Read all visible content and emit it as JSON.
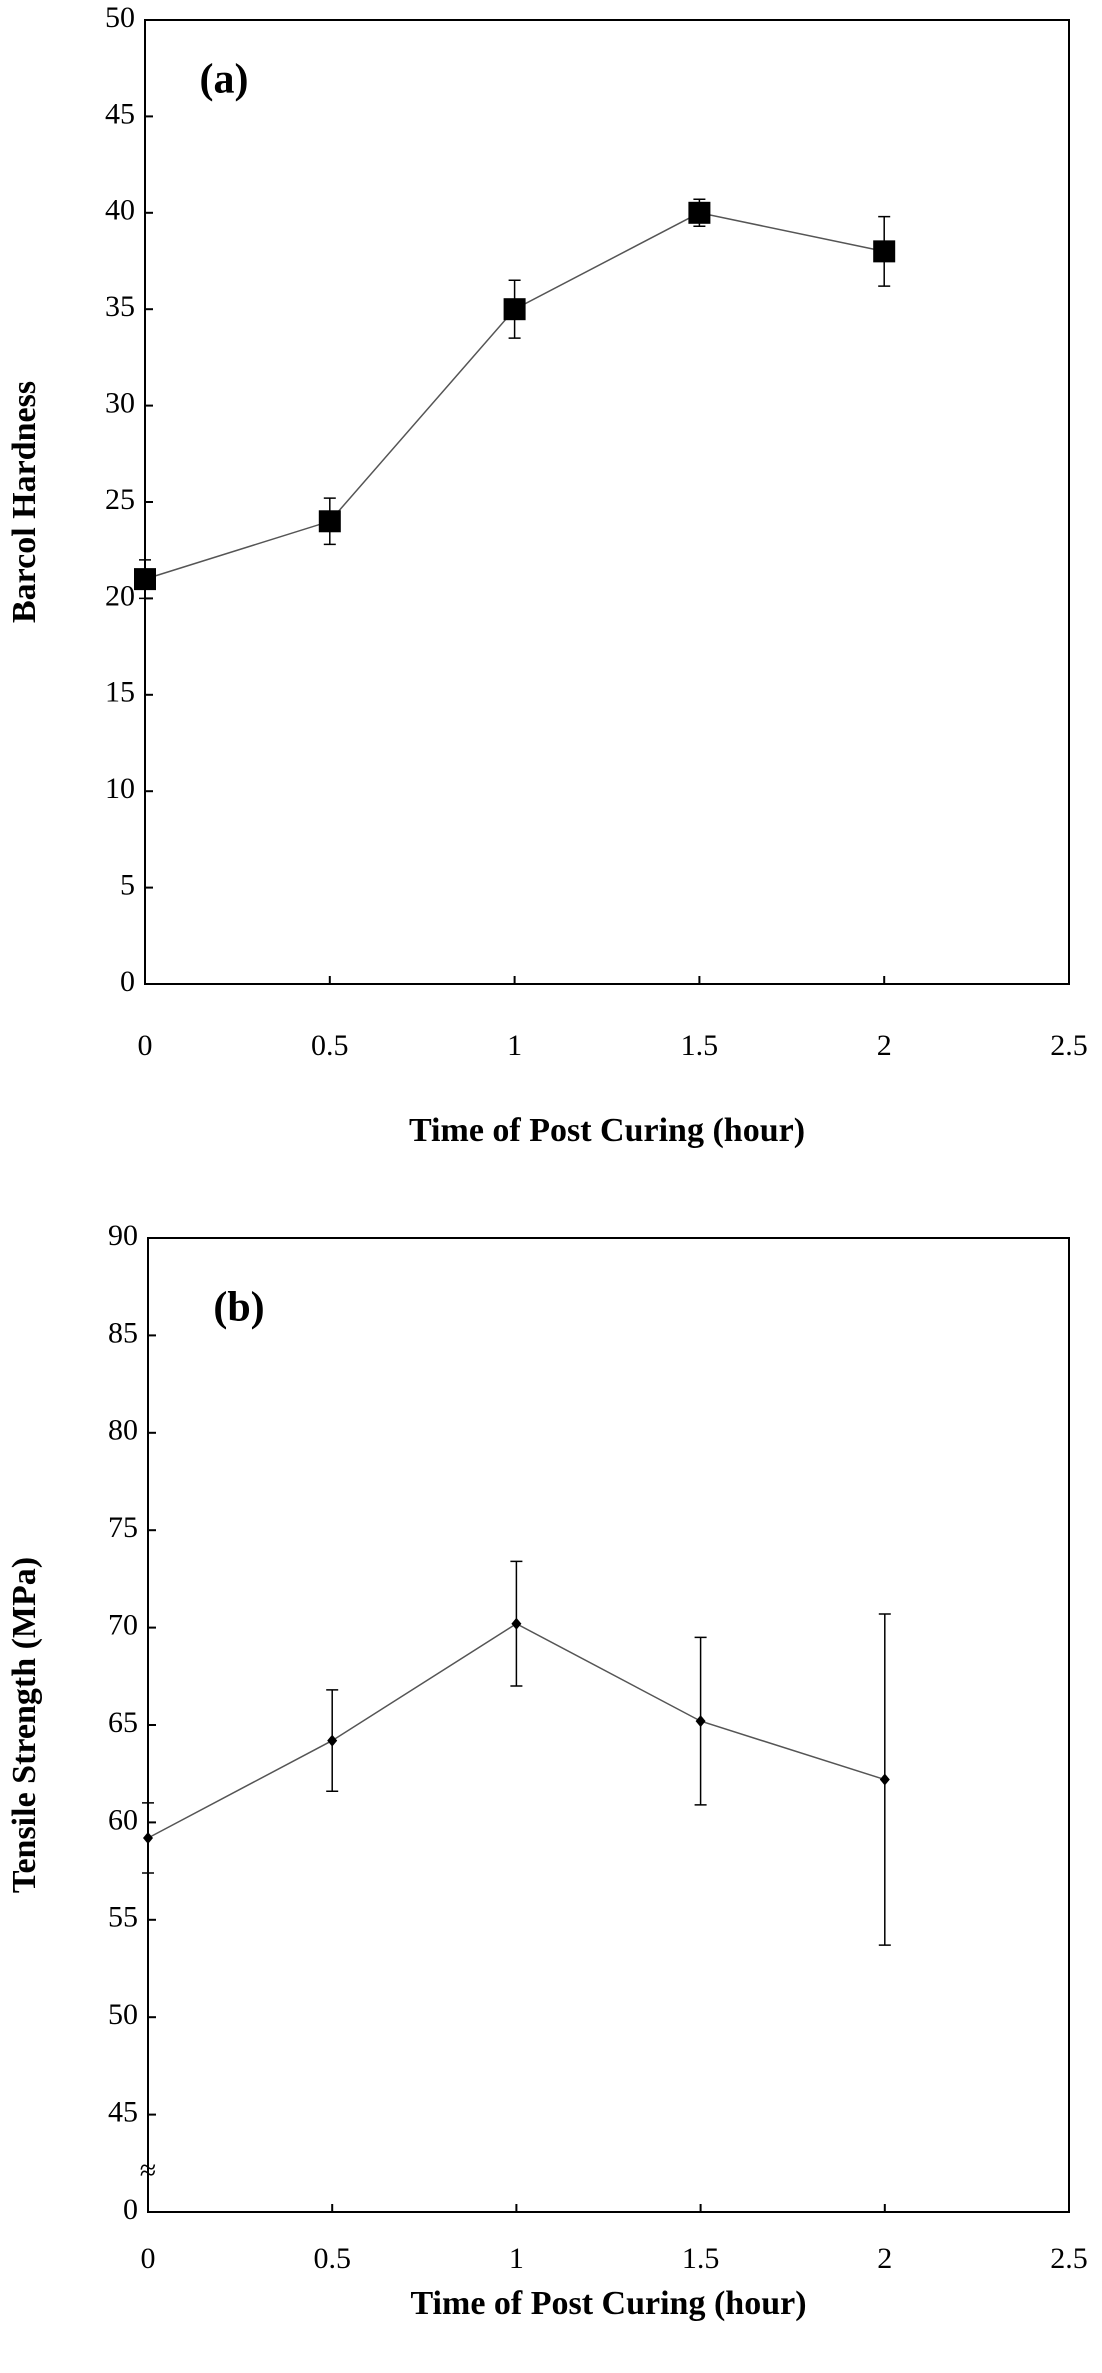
{
  "chart_data": [
    {
      "type": "line",
      "label": "(a)",
      "xlabel": "Time of Post Curing (hour)",
      "ylabel": "Barcol Hardness",
      "x": [
        0,
        0.5,
        1,
        1.5,
        2
      ],
      "series": [
        {
          "values": [
            21,
            24,
            35,
            40,
            38
          ],
          "errors": [
            1,
            1.2,
            1.5,
            0.7,
            1.8
          ],
          "color": "#000000",
          "marker": "square"
        }
      ],
      "xlim": [
        0,
        2.5
      ],
      "xticks": [
        0,
        0.5,
        1,
        1.5,
        2,
        2.5
      ],
      "ylim": [
        0,
        50
      ],
      "yticks": [
        0,
        5,
        10,
        15,
        20,
        25,
        30,
        35,
        40,
        45,
        50
      ]
    },
    {
      "type": "line",
      "label": "(b)",
      "xlabel": "Time of Post Curing (hour)",
      "ylabel": "Tensile Strength (MPa)",
      "x": [
        0,
        0.5,
        1,
        1.5,
        2
      ],
      "series": [
        {
          "values": [
            59.2,
            64.2,
            70.2,
            65.2,
            62.2
          ],
          "errors": [
            1.8,
            2.6,
            3.2,
            4.3,
            8.5
          ],
          "color": "#000000",
          "marker": "diamond"
        }
      ],
      "xlim": [
        0,
        2.5
      ],
      "xticks": [
        0,
        0.5,
        1,
        1.5,
        2,
        2.5
      ],
      "ylim": [
        0,
        90
      ],
      "yticks": [
        0,
        45,
        50,
        55,
        60,
        65,
        70,
        75,
        80,
        85,
        90
      ],
      "break_label": "≈"
    }
  ]
}
